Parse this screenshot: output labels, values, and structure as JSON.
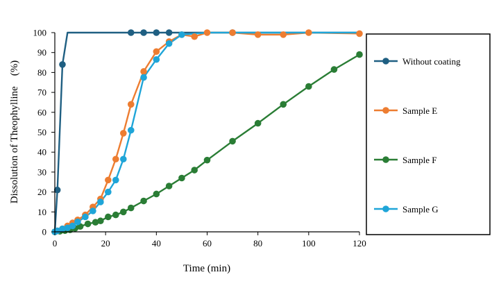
{
  "chart_data": {
    "type": "line",
    "title": "",
    "xlabel": "Time (min)",
    "ylabel": "Dissolution of Theophylline　(%)",
    "xlim": [
      0,
      120
    ],
    "ylim": [
      0,
      100
    ],
    "xticks": [
      0,
      20,
      40,
      60,
      80,
      100,
      120
    ],
    "yticks": [
      0,
      10,
      20,
      30,
      40,
      50,
      60,
      70,
      80,
      90,
      100
    ],
    "grid": false,
    "legend_position": "right",
    "series": [
      {
        "name": "Without coating",
        "color": "#1f5f82",
        "x": [
          0,
          1,
          3,
          5,
          30,
          35,
          40,
          45,
          70,
          120
        ],
        "y": [
          0,
          21,
          84,
          100,
          100,
          100,
          100,
          100,
          100,
          100
        ],
        "markers": [
          true,
          true,
          true,
          false,
          true,
          true,
          true,
          true,
          true,
          false
        ]
      },
      {
        "name": "Sample E",
        "color": "#ed7d31",
        "x": [
          0,
          1,
          3,
          5,
          7,
          9,
          12,
          15,
          18,
          21,
          24,
          27,
          30,
          35,
          40,
          45,
          50,
          55,
          60,
          70,
          80,
          90,
          100,
          120
        ],
        "y": [
          0,
          0.5,
          1.5,
          3,
          4.5,
          6,
          8.5,
          12.5,
          16.5,
          26,
          36.5,
          49.5,
          64,
          80.5,
          90.5,
          95.5,
          99,
          98,
          100,
          100,
          99,
          99,
          100,
          99.5
        ],
        "markers": [
          true,
          true,
          true,
          true,
          true,
          true,
          true,
          true,
          true,
          true,
          true,
          true,
          true,
          true,
          true,
          true,
          true,
          true,
          true,
          true,
          true,
          true,
          true,
          true
        ]
      },
      {
        "name": "Sample F",
        "color": "#2a7d35",
        "x": [
          0,
          2,
          4,
          6,
          8,
          10,
          13,
          16,
          18,
          21,
          24,
          27,
          30,
          35,
          40,
          45,
          50,
          55,
          60,
          70,
          80,
          90,
          100,
          110,
          120
        ],
        "y": [
          0,
          0.3,
          0.6,
          1,
          1.8,
          2.7,
          4,
          4.8,
          5.5,
          7.5,
          8.5,
          10,
          12,
          15.5,
          19,
          23,
          27,
          31,
          36,
          45.5,
          54.5,
          64,
          73,
          81.5,
          89
        ],
        "markers": [
          true,
          true,
          true,
          true,
          true,
          true,
          true,
          true,
          true,
          true,
          true,
          true,
          true,
          true,
          true,
          true,
          true,
          true,
          true,
          true,
          true,
          true,
          true,
          true,
          true
        ]
      },
      {
        "name": "Sample G",
        "color": "#1fa5d8",
        "x": [
          0,
          1,
          3,
          5,
          7,
          9,
          12,
          15,
          18,
          21,
          24,
          27,
          30,
          35,
          40,
          45,
          50,
          60,
          70,
          80,
          90,
          100,
          110,
          120
        ],
        "y": [
          0,
          0.5,
          1.5,
          2,
          3,
          5,
          7.5,
          10.5,
          15,
          20,
          26,
          36.5,
          51,
          77.5,
          86.5,
          94.5,
          99,
          100,
          100,
          100,
          100,
          100,
          100,
          100
        ],
        "markers": [
          true,
          true,
          true,
          true,
          true,
          true,
          true,
          true,
          true,
          true,
          true,
          true,
          true,
          true,
          true,
          true,
          true,
          false,
          false,
          false,
          false,
          false,
          false,
          false
        ]
      }
    ]
  }
}
